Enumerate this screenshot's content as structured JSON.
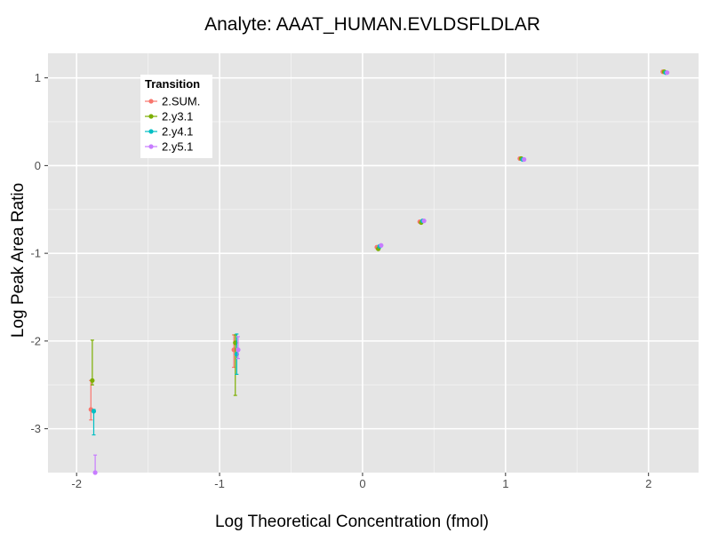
{
  "chart_data": {
    "type": "scatter",
    "title": "Analyte: AAAT_HUMAN.EVLDSFLDLAR",
    "xlabel": "Log Theoretical Concentration (fmol)",
    "ylabel": "Log Peak Area Ratio",
    "xlim": [
      -2.2,
      2.35
    ],
    "ylim": [
      -3.5,
      1.28
    ],
    "x_ticks": [
      -2,
      -1,
      0,
      1,
      2
    ],
    "x_tick_labels": [
      "-2",
      "-1",
      "0",
      "1",
      "2"
    ],
    "y_ticks": [
      -3,
      -2,
      -1,
      0,
      1
    ],
    "y_tick_labels": [
      "-3",
      "-2",
      "-1",
      "0",
      "1"
    ],
    "grid": true,
    "panel_background": "#e5e5e5",
    "legend": {
      "title": "Transition",
      "placement": "top-left"
    },
    "series": [
      {
        "name": "2.SUM.",
        "color": "#f8766d",
        "points": [
          {
            "x": -1.9,
            "y": -2.78,
            "ymin": -2.9,
            "ymax": -2.45
          },
          {
            "x": -0.9,
            "y": -2.1,
            "ymin": -2.3,
            "ymax": -1.93
          },
          {
            "x": 0.1,
            "y": -0.93
          },
          {
            "x": 0.4,
            "y": -0.64
          },
          {
            "x": 1.1,
            "y": 0.08
          },
          {
            "x": 2.1,
            "y": 1.07
          }
        ]
      },
      {
        "name": "2.y3.1",
        "color": "#7cae00",
        "points": [
          {
            "x": -1.89,
            "y": -2.45,
            "ymin": -2.5,
            "ymax": -1.99
          },
          {
            "x": -0.89,
            "y": -2.02,
            "ymin": -2.62,
            "ymax": -1.93
          },
          {
            "x": 0.11,
            "y": -0.95
          },
          {
            "x": 0.41,
            "y": -0.65
          },
          {
            "x": 1.11,
            "y": 0.08
          },
          {
            "x": 2.11,
            "y": 1.07
          }
        ]
      },
      {
        "name": "2.y4.1",
        "color": "#00bfc4",
        "points": [
          {
            "x": -1.88,
            "y": -2.8,
            "ymin": -3.07,
            "ymax": -2.78
          },
          {
            "x": -0.88,
            "y": -2.15,
            "ymin": -2.38,
            "ymax": -1.92
          },
          {
            "x": 0.12,
            "y": -0.92
          },
          {
            "x": 0.42,
            "y": -0.63
          },
          {
            "x": 1.12,
            "y": 0.07
          },
          {
            "x": 2.12,
            "y": 1.06
          }
        ]
      },
      {
        "name": "2.y5.1",
        "color": "#c77cff",
        "points": [
          {
            "x": -1.87,
            "y": -3.5,
            "ymin": -3.6,
            "ymax": -3.3
          },
          {
            "x": -0.87,
            "y": -2.1,
            "ymin": -2.2,
            "ymax": -1.95
          },
          {
            "x": 0.13,
            "y": -0.91
          },
          {
            "x": 0.43,
            "y": -0.63
          },
          {
            "x": 1.13,
            "y": 0.07
          },
          {
            "x": 2.13,
            "y": 1.06
          }
        ]
      }
    ]
  }
}
